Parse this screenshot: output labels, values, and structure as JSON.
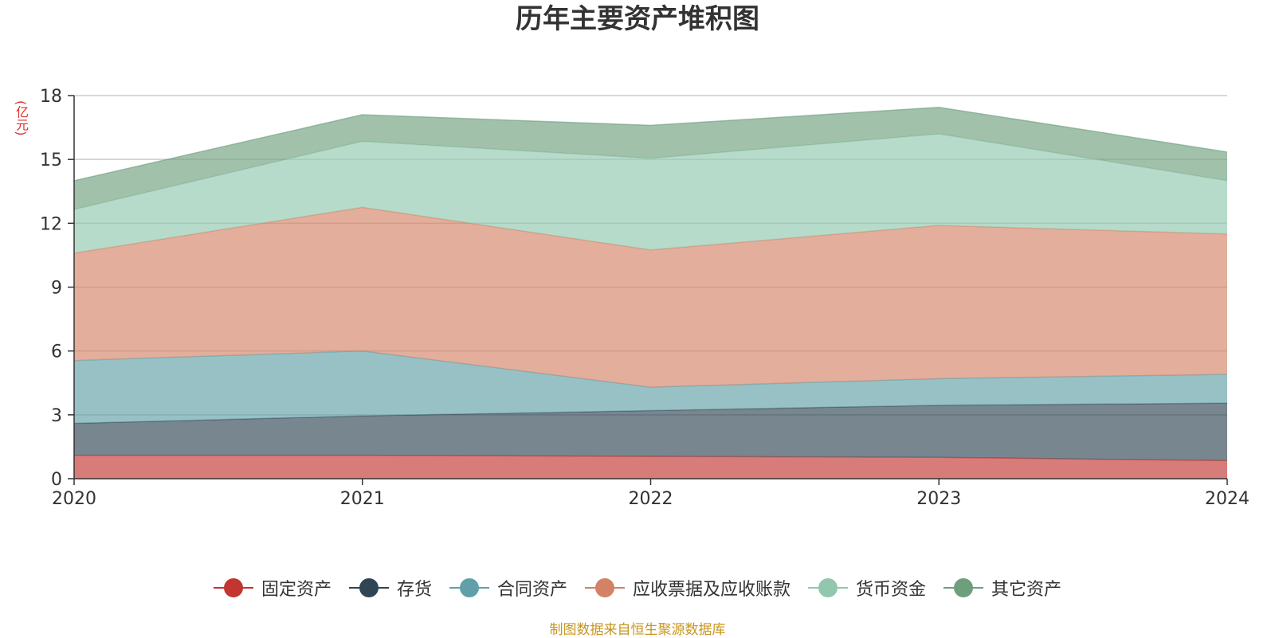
{
  "chart_data": {
    "type": "area",
    "stacked": true,
    "title": "历年主要资产堆积图",
    "ylabel": "(亿元)",
    "x": [
      "2020",
      "2021",
      "2022",
      "2023",
      "2024"
    ],
    "ylim": [
      0,
      18
    ],
    "yticks": [
      0,
      3,
      6,
      9,
      12,
      15,
      18
    ],
    "grid": true,
    "legend_position": "bottom",
    "series": [
      {
        "name": "固定资产",
        "color": "#c23531",
        "values": [
          1.1,
          1.1,
          1.05,
          1.0,
          0.85
        ]
      },
      {
        "name": "存货",
        "color": "#2f4554",
        "values": [
          1.5,
          1.85,
          2.15,
          2.45,
          2.7
        ]
      },
      {
        "name": "合同资产",
        "color": "#61a0a8",
        "values": [
          2.95,
          3.05,
          1.1,
          1.25,
          1.35
        ]
      },
      {
        "name": "应收票据及应收账款",
        "color": "#d48265",
        "values": [
          5.05,
          6.75,
          6.45,
          7.2,
          6.6
        ]
      },
      {
        "name": "货币资金",
        "color": "#91c7ae",
        "values": [
          2.05,
          3.1,
          4.3,
          4.3,
          2.5
        ]
      },
      {
        "name": "其它资产",
        "color": "#6e9f7d",
        "values": [
          1.35,
          1.25,
          1.55,
          1.25,
          1.35
        ]
      }
    ]
  },
  "source_note": "制图数据来自恒生聚源数据库"
}
